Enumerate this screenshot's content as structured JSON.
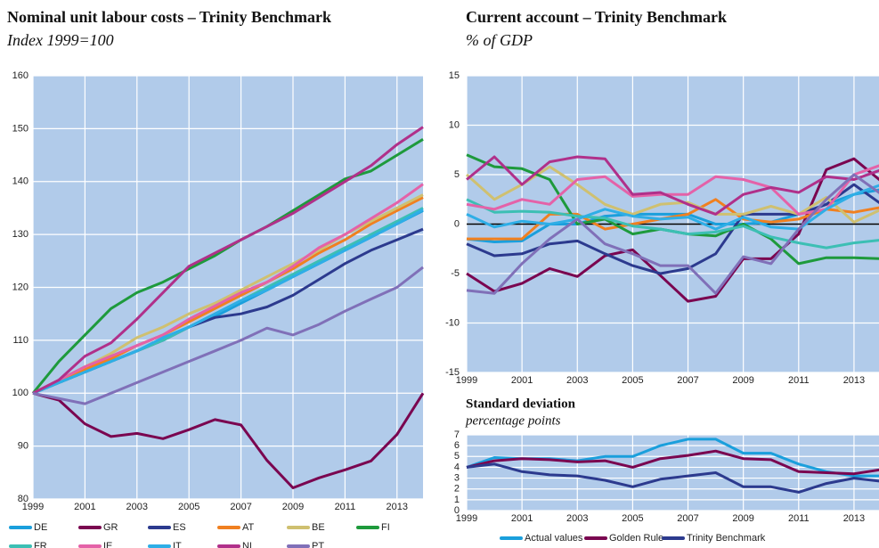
{
  "chart_data": [
    {
      "type": "line",
      "title": "Nominal unit labour costs – Trinity Benchmark",
      "subtitle": "Index 1999=100",
      "x": [
        1999,
        2000,
        2001,
        2002,
        2003,
        2004,
        2005,
        2006,
        2007,
        2008,
        2009,
        2010,
        2011,
        2012,
        2013,
        2014
      ],
      "xlim": [
        1999,
        2014
      ],
      "xticks": [
        1999,
        2001,
        2003,
        2005,
        2007,
        2009,
        2011,
        2013
      ],
      "ylim": [
        80,
        160
      ],
      "yticks": [
        80,
        90,
        100,
        110,
        120,
        130,
        140,
        150,
        160
      ],
      "grid": true,
      "series": [
        {
          "name": "DE",
          "color": "#1a9fdc",
          "values": [
            100,
            102,
            104,
            106,
            108,
            110.3,
            112.5,
            114.5,
            117,
            119.5,
            122,
            124.5,
            127,
            129.5,
            132,
            134.5
          ]
        },
        {
          "name": "GR",
          "color": "#7a0650",
          "values": [
            100,
            98.7,
            94.2,
            91.8,
            92.4,
            91.4,
            93.1,
            95,
            94,
            87.3,
            82.1,
            84,
            85.5,
            87.2,
            92.2,
            100
          ]
        },
        {
          "name": "ES",
          "color": "#2c3a8e",
          "values": [
            100,
            102,
            104,
            106,
            108,
            110,
            112.5,
            114.3,
            115,
            116.3,
            118.5,
            121.5,
            124.5,
            127,
            129,
            131
          ]
        },
        {
          "name": "AT",
          "color": "#f08020",
          "values": [
            100,
            102.5,
            104.5,
            106.5,
            109,
            111,
            113.5,
            116,
            118.5,
            121,
            123.5,
            126.5,
            129,
            132,
            134.5,
            137
          ]
        },
        {
          "name": "BE",
          "color": "#cfc070",
          "values": [
            100,
            102.5,
            105,
            107.5,
            110.5,
            112.5,
            115,
            117,
            119.5,
            122,
            124.5,
            127,
            130,
            132.5,
            135,
            137.5
          ]
        },
        {
          "name": "FI",
          "color": "#1e9a3c",
          "values": [
            100,
            106,
            111,
            116,
            119,
            121,
            123.5,
            126,
            129,
            131.5,
            134.5,
            137.5,
            140.5,
            142,
            145,
            148
          ]
        },
        {
          "name": "FR",
          "color": "#3cbfb4",
          "values": [
            100,
            102,
            104,
            106,
            108,
            110,
            112.5,
            115,
            117.5,
            120,
            122.5,
            125,
            127.5,
            130,
            132.5,
            135
          ]
        },
        {
          "name": "IE",
          "color": "#e462a8",
          "values": [
            100,
            102.5,
            105,
            107,
            109,
            111,
            114,
            116.5,
            119,
            121,
            124,
            127.5,
            130,
            133,
            136,
            139.5
          ]
        },
        {
          "name": "IT",
          "color": "#2eaee6",
          "values": [
            100,
            102,
            104,
            106,
            108,
            110.5,
            112.5,
            115,
            117.5,
            119.5,
            122,
            124.5,
            127,
            129.5,
            132,
            134.7
          ]
        },
        {
          "name": "NL",
          "color": "#b0308a",
          "values": [
            100,
            102.5,
            107,
            109.5,
            114,
            119,
            124,
            126.5,
            129,
            131.5,
            134,
            137,
            140,
            143,
            147,
            150.3
          ]
        },
        {
          "name": "PT",
          "color": "#8070b8",
          "values": [
            100,
            99,
            98,
            100,
            102,
            104,
            106,
            108,
            110,
            112.3,
            111,
            113,
            115.5,
            117.8,
            120,
            123.8
          ]
        }
      ]
    },
    {
      "type": "line",
      "title": "Current account – Trinity Benchmark",
      "subtitle": "% of GDP",
      "x": [
        1999,
        2000,
        2001,
        2002,
        2003,
        2004,
        2005,
        2006,
        2007,
        2008,
        2009,
        2010,
        2011,
        2012,
        2013,
        2014
      ],
      "xlim": [
        1999,
        2014
      ],
      "xticks": [
        1999,
        2001,
        2003,
        2005,
        2007,
        2009,
        2011,
        2013
      ],
      "ylim": [
        -15,
        15
      ],
      "yticks": [
        -15,
        -10,
        -5,
        0,
        5,
        10,
        15
      ],
      "grid": true,
      "zero_line": true,
      "series": [
        {
          "color": "#1a9fdc",
          "values": [
            -1.5,
            -1.8,
            -1.7,
            0,
            0,
            0.8,
            1,
            1,
            1,
            0,
            0,
            0.2,
            1,
            2,
            3,
            3.5
          ]
        },
        {
          "color": "#7a0650",
          "values": [
            -5,
            -6.8,
            -6,
            -4.5,
            -5.3,
            -3.2,
            -2.6,
            -5.2,
            -7.8,
            -7.3,
            -3.5,
            -3.5,
            -1,
            5.5,
            6.6,
            4.3
          ]
        },
        {
          "color": "#2c3a8e",
          "values": [
            -2,
            -3.2,
            -3,
            -2,
            -1.7,
            -3,
            -4.2,
            -5,
            -4.5,
            -3,
            1,
            1,
            1,
            2,
            4,
            2
          ]
        },
        {
          "color": "#f08020",
          "values": [
            -1.5,
            -1.5,
            -1.5,
            1,
            1,
            -0.5,
            0,
            0.5,
            1,
            2.5,
            0.5,
            0.2,
            0.5,
            1.5,
            1.2,
            1.7
          ]
        },
        {
          "color": "#cfc070",
          "values": [
            5,
            2.5,
            4,
            5.8,
            4,
            2,
            1,
            2,
            2.2,
            1,
            1,
            1.8,
            1,
            2.7,
            0.2,
            1.5
          ]
        },
        {
          "color": "#1e9a3c",
          "values": [
            7,
            5.8,
            5.6,
            4.5,
            0,
            0.5,
            -1,
            -0.5,
            -1,
            -1.2,
            0,
            -1.5,
            -4,
            -3.4,
            -3.4,
            -3.5
          ]
        },
        {
          "color": "#3cbfb4",
          "values": [
            2.5,
            1.2,
            1.3,
            1.2,
            0.8,
            0.6,
            -0.2,
            -0.5,
            -1,
            -0.8,
            -0.2,
            -1.3,
            -1.9,
            -2.4,
            -1.9,
            -1.6
          ]
        },
        {
          "color": "#e462a8",
          "values": [
            2,
            1.5,
            2.5,
            2,
            4.5,
            4.8,
            2.8,
            3,
            3,
            4.8,
            4.5,
            3.7,
            1,
            1.5,
            5,
            6
          ]
        },
        {
          "color": "#2eaee6",
          "values": [
            1,
            -0.3,
            0.3,
            0,
            0.5,
            1.5,
            0.8,
            0.5,
            0.7,
            -0.5,
            0.7,
            -0.3,
            -0.5,
            1.5,
            3,
            4
          ]
        },
        {
          "color": "#b0308a",
          "values": [
            4.5,
            6.8,
            4,
            6.3,
            6.8,
            6.6,
            3,
            3.2,
            2,
            1,
            3,
            3.7,
            3.2,
            4.8,
            4.5,
            5.5
          ]
        },
        {
          "color": "#8070b8",
          "values": [
            -6.7,
            -7,
            -4,
            -1.5,
            0.5,
            -2,
            -3,
            -4.2,
            -4.2,
            -7,
            -3.3,
            -4,
            -0.5,
            2.5,
            5,
            3
          ]
        }
      ]
    },
    {
      "type": "line",
      "title": "Standard deviation",
      "subtitle": "percentage points",
      "x": [
        1999,
        2000,
        2001,
        2002,
        2003,
        2004,
        2005,
        2006,
        2007,
        2008,
        2009,
        2010,
        2011,
        2012,
        2013,
        2014
      ],
      "xlim": [
        1999,
        2014
      ],
      "xticks": [
        1999,
        2001,
        2003,
        2005,
        2007,
        2009,
        2011,
        2013
      ],
      "ylim": [
        0,
        7
      ],
      "yticks": [
        0,
        1,
        2,
        3,
        4,
        5,
        6,
        7
      ],
      "grid": true,
      "series": [
        {
          "name": "Actual values",
          "color": "#1a9fdc",
          "values": [
            4,
            4.9,
            4.8,
            4.8,
            4.6,
            5,
            5,
            6,
            6.6,
            6.6,
            5.3,
            5.3,
            4.3,
            3.6,
            3.2,
            3.2
          ]
        },
        {
          "name": "Golden Rule",
          "color": "#7a0650",
          "values": [
            4,
            4.6,
            4.8,
            4.7,
            4.5,
            4.6,
            4,
            4.8,
            5.1,
            5.5,
            4.8,
            4.7,
            3.6,
            3.5,
            3.4,
            3.8
          ]
        },
        {
          "name": "Trinity Benchmark",
          "color": "#2c3a8e",
          "values": [
            4,
            4.3,
            3.6,
            3.3,
            3.2,
            2.8,
            2.2,
            2.9,
            3.2,
            3.5,
            2.2,
            2.2,
            1.7,
            2.5,
            3,
            2.7
          ]
        }
      ]
    }
  ]
}
